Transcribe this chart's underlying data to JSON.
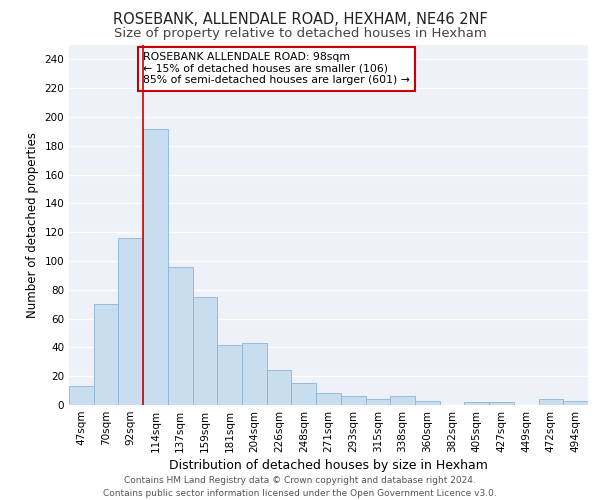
{
  "title": "ROSEBANK, ALLENDALE ROAD, HEXHAM, NE46 2NF",
  "subtitle": "Size of property relative to detached houses in Hexham",
  "xlabel": "Distribution of detached houses by size in Hexham",
  "ylabel": "Number of detached properties",
  "bar_labels": [
    "47sqm",
    "70sqm",
    "92sqm",
    "114sqm",
    "137sqm",
    "159sqm",
    "181sqm",
    "204sqm",
    "226sqm",
    "248sqm",
    "271sqm",
    "293sqm",
    "315sqm",
    "338sqm",
    "360sqm",
    "382sqm",
    "405sqm",
    "427sqm",
    "449sqm",
    "472sqm",
    "494sqm"
  ],
  "bar_values": [
    13,
    70,
    116,
    192,
    96,
    75,
    42,
    43,
    24,
    15,
    8,
    6,
    4,
    6,
    3,
    0,
    2,
    2,
    0,
    4,
    3
  ],
  "bar_color": "#c9ddf0",
  "bar_edge_color": "#8ab4d8",
  "ylim": [
    0,
    250
  ],
  "yticks": [
    0,
    20,
    40,
    60,
    80,
    100,
    120,
    140,
    160,
    180,
    200,
    220,
    240
  ],
  "vline_x": 2.5,
  "vline_color": "#cc0000",
  "annotation_text": "ROSEBANK ALLENDALE ROAD: 98sqm\n← 15% of detached houses are smaller (106)\n85% of semi-detached houses are larger (601) →",
  "annotation_box_edge": "#cc0000",
  "footer_line1": "Contains HM Land Registry data © Crown copyright and database right 2024.",
  "footer_line2": "Contains public sector information licensed under the Open Government Licence v3.0.",
  "bg_color": "#ffffff",
  "plot_bg_color": "#eef2f8",
  "grid_color": "#ffffff",
  "title_fontsize": 10.5,
  "subtitle_fontsize": 9.5,
  "ylabel_fontsize": 8.5,
  "xlabel_fontsize": 9,
  "tick_fontsize": 7.5,
  "footer_fontsize": 6.5,
  "annot_fontsize": 7.8
}
